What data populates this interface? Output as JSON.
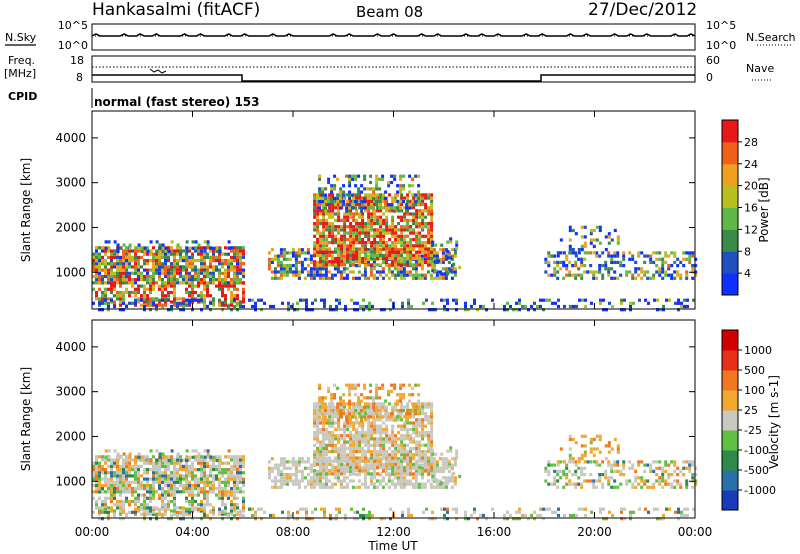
{
  "header": {
    "station": "Hankasalmi (fitACF)",
    "beam": "Beam 08",
    "date": "27/Dec/2012"
  },
  "side_labels": {
    "nsky": "N.Sky",
    "nsearch": "N.Search",
    "freq": "Freq.",
    "freq_unit": "[MHz]",
    "nave": "Nave",
    "cpid": "CPID"
  },
  "panel_ticks": {
    "noise_left": [
      "10^5",
      "10^0"
    ],
    "noise_right": [
      "10^5",
      "10^0"
    ],
    "freq_left": [
      "18",
      "8"
    ],
    "freq_right": [
      "60",
      "0"
    ]
  },
  "cpid_text": "normal (fast stereo) 153",
  "chart_data": [
    {
      "type": "heatmap",
      "name": "power",
      "ylabel": "Slant Range [km]",
      "xlabel": "",
      "yticks": [
        "1000",
        "2000",
        "3000",
        "4000"
      ],
      "ylim": [
        180,
        4600
      ],
      "colorbar": {
        "label": "Power [dB]",
        "ticks": [
          "4",
          "8",
          "12",
          "16",
          "20",
          "24",
          "28"
        ],
        "colors": [
          "#1030ff",
          "#2050c0",
          "#3a8a4a",
          "#60b848",
          "#b8c020",
          "#f0a020",
          "#f06018",
          "#e81818"
        ]
      }
    },
    {
      "type": "heatmap",
      "name": "velocity",
      "ylabel": "Slant Range [km]",
      "xlabel": "Time UT",
      "yticks": [
        "1000",
        "2000",
        "3000",
        "4000"
      ],
      "xticks": [
        "00:00",
        "04:00",
        "08:00",
        "12:00",
        "16:00",
        "20:00",
        "00:00"
      ],
      "ylim": [
        180,
        4600
      ],
      "colorbar": {
        "label": "Velocity [m s-1]",
        "ticks": [
          "1000",
          "500",
          "100",
          "25",
          "-25",
          "-100",
          "-500",
          "-1000"
        ],
        "colors": [
          "#1a3ab8",
          "#2a70a8",
          "#2e8a4a",
          "#60c040",
          "#c8c8c0",
          "#f0a830",
          "#f07820",
          "#e83018",
          "#d00000"
        ]
      }
    }
  ]
}
